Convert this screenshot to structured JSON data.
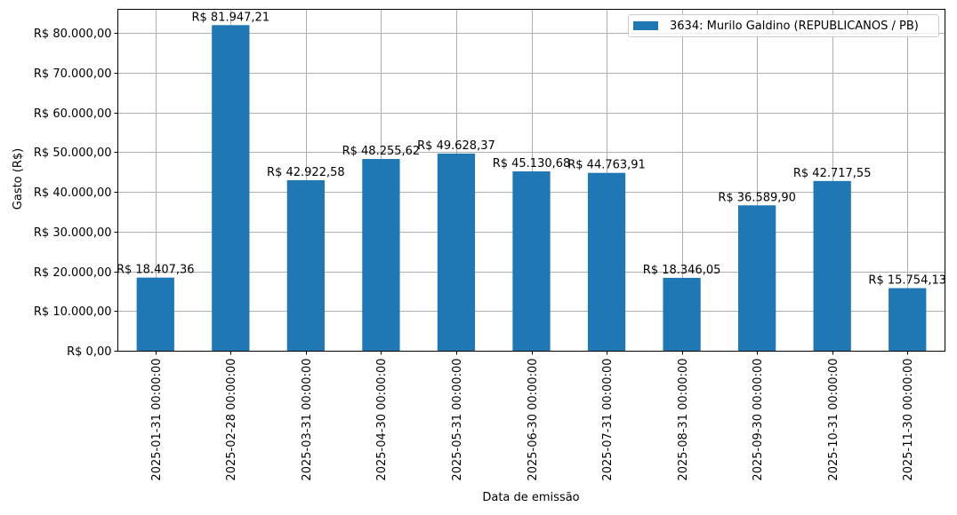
{
  "chart_data": {
    "type": "bar",
    "title": "",
    "xlabel": "Data de emissão",
    "ylabel": "Gasto (R$)",
    "ylim": [
      0,
      86000
    ],
    "grid": true,
    "legend_position": "upper right",
    "bar_color": "#1f77b4",
    "categories": [
      "2025-01-31 00:00:00",
      "2025-02-28 00:00:00",
      "2025-03-31 00:00:00",
      "2025-04-30 00:00:00",
      "2025-05-31 00:00:00",
      "2025-06-30 00:00:00",
      "2025-07-31 00:00:00",
      "2025-08-31 00:00:00",
      "2025-09-30 00:00:00",
      "2025-10-31 00:00:00",
      "2025-11-30 00:00:00"
    ],
    "series": [
      {
        "name": "3634: Murilo Galdino (REPUBLICANOS / PB)",
        "values": [
          18407.36,
          81947.21,
          42922.58,
          48255.62,
          49628.37,
          45130.68,
          44763.91,
          18346.05,
          36589.9,
          42717.55,
          15754.13
        ],
        "labels": [
          "R$ 18.407,36",
          "R$ 81.947,21",
          "R$ 42.922,58",
          "R$ 48.255,62",
          "R$ 49.628,37",
          "R$ 45.130,68",
          "R$ 44.763,91",
          "R$ 18.346,05",
          "R$ 36.589,90",
          "R$ 42.717,55",
          "R$ 15.754,13"
        ]
      }
    ],
    "yticks": [
      {
        "value": 0,
        "label": "R$ 0,00"
      },
      {
        "value": 10000,
        "label": "R$ 10.000,00"
      },
      {
        "value": 20000,
        "label": "R$ 20.000,00"
      },
      {
        "value": 30000,
        "label": "R$ 30.000,00"
      },
      {
        "value": 40000,
        "label": "R$ 40.000,00"
      },
      {
        "value": 50000,
        "label": "R$ 50.000,00"
      },
      {
        "value": 60000,
        "label": "R$ 60.000,00"
      },
      {
        "value": 70000,
        "label": "R$ 70.000,00"
      },
      {
        "value": 80000,
        "label": "R$ 80.000,00"
      }
    ]
  }
}
